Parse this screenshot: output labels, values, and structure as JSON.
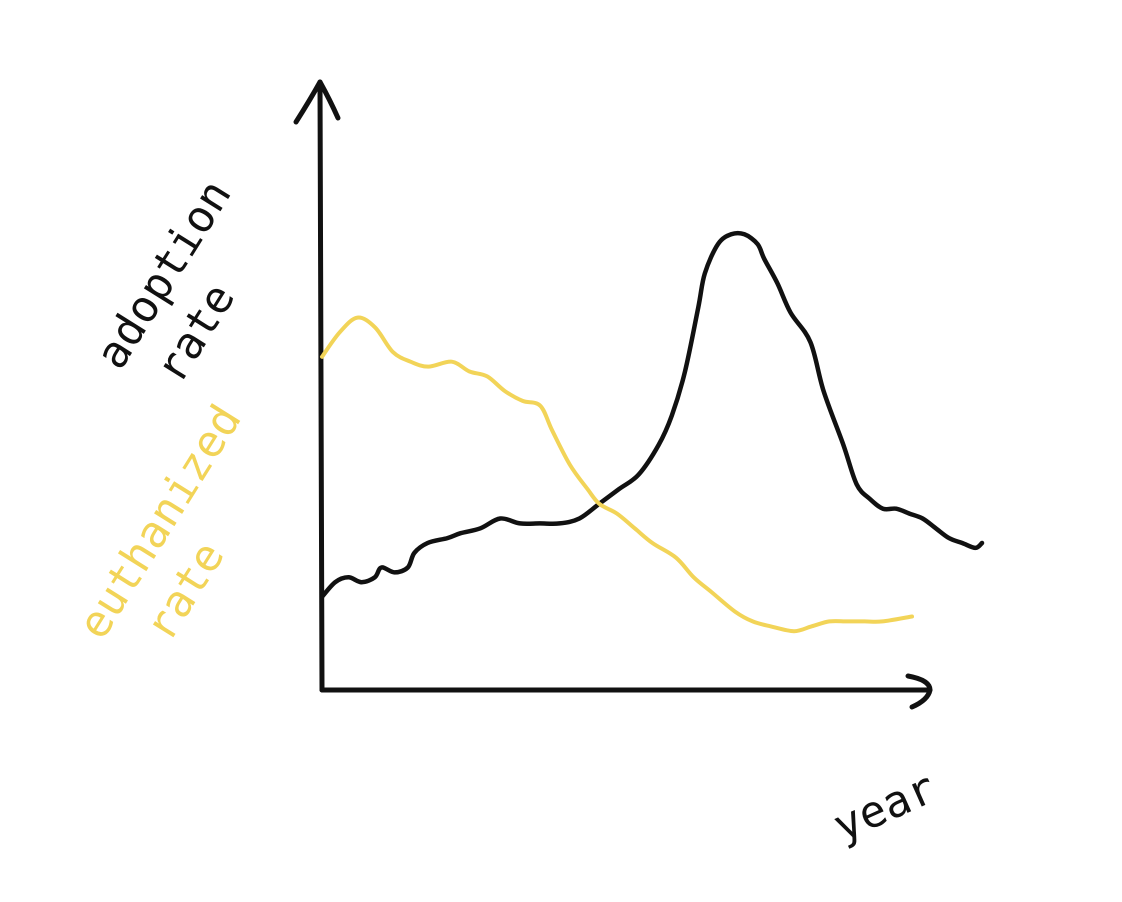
{
  "chart_data": {
    "type": "line",
    "title": "",
    "xlabel": "year",
    "ylabel_lines": [
      "adoption",
      "rate"
    ],
    "xlim": [
      0,
      100
    ],
    "ylim": [
      0,
      100
    ],
    "grid": false,
    "legend": "none",
    "axis_color": "#111111",
    "series": [
      {
        "name": "",
        "label_lines": [
          "adoption",
          "rate"
        ],
        "color": "#111111",
        "x": [
          0,
          2,
          4,
          6,
          8,
          9,
          11,
          13,
          14,
          16,
          19,
          21,
          24,
          27,
          30,
          33,
          36,
          39,
          42,
          45,
          48,
          51,
          53,
          55,
          57,
          58,
          60,
          62,
          64,
          66,
          67,
          69,
          71,
          74,
          76,
          79,
          81,
          83,
          85,
          87,
          89,
          91,
          93,
          95,
          97,
          99,
          100
        ],
        "y": [
          19,
          22,
          23,
          22,
          23,
          25,
          24,
          25,
          28,
          30,
          31,
          32,
          33,
          35,
          34,
          34,
          34,
          35,
          38,
          41,
          44,
          50,
          56,
          65,
          78,
          85,
          91,
          93,
          93,
          91,
          88,
          83,
          77,
          71,
          61,
          50,
          42,
          39,
          37,
          37,
          36,
          35,
          33,
          31,
          30,
          29,
          30
        ]
      },
      {
        "name": "",
        "label_lines": [
          "euthanized",
          "rate"
        ],
        "color": "#F2D458",
        "x": [
          0,
          3,
          6,
          9,
          12,
          15,
          18,
          22,
          25,
          28,
          31,
          34,
          37,
          39,
          42,
          45,
          47,
          50,
          53,
          56,
          60,
          63,
          66,
          70,
          73,
          76,
          80,
          83,
          86,
          89,
          92,
          95,
          100
        ],
        "y": [
          68,
          73,
          76,
          74,
          69,
          67,
          66,
          67,
          65,
          64,
          61,
          59,
          58,
          53,
          46,
          41,
          38,
          36,
          33,
          30,
          27,
          23,
          20,
          16,
          14,
          13,
          12,
          13,
          14,
          14,
          14,
          14,
          15
        ]
      }
    ]
  }
}
